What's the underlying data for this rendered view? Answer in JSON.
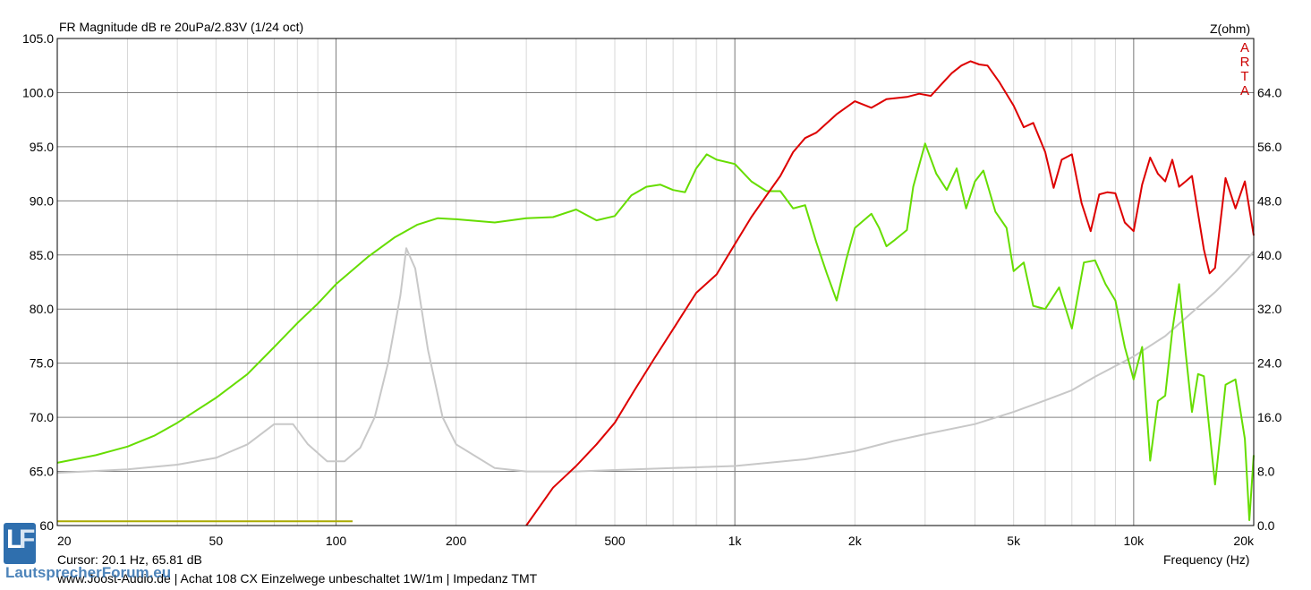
{
  "header": {
    "title": "FR Magnitude dB re 20uPa/2.83V (1/24 oct)",
    "right_axis_title": "Z(ohm)"
  },
  "watermark": {
    "letters": [
      "A",
      "R",
      "T",
      "A"
    ]
  },
  "footer": {
    "cursor": "Cursor: 20.1 Hz, 65.81 dB",
    "xlabel": "Frequency (Hz)",
    "caption": "www.Joost-Audio.de  |  Achat 108 CX  Einzelwege unbeschaltet 1W/1m  |  Impedanz TMT"
  },
  "logo": {
    "letters": "LF",
    "brand": "LautsprecherForum.eu"
  },
  "colors": {
    "background": "#ffffff",
    "grid_major": "#808080",
    "grid_minor": "#d8d8d8",
    "tweeter": "#dd0000",
    "woofer": "#66dd00",
    "impedance": "#c8c8c8",
    "marker": "#aaaa00",
    "arta": "#cc0000",
    "logo": "#2f6fae"
  },
  "chart_data": {
    "type": "line",
    "title": "FR Magnitude dB re 20uPa/2.83V (1/24 oct)",
    "xlabel": "Frequency (Hz)",
    "ylabel_right": "Z(ohm)",
    "x_scale": "log",
    "xlim": [
      20,
      20000
    ],
    "ylim": [
      60,
      105
    ],
    "ylim_right": [
      0,
      72
    ],
    "grid": true,
    "x_ticks": [
      20,
      50,
      100,
      200,
      500,
      1000,
      2000,
      5000,
      10000,
      20000
    ],
    "x_tick_labels": [
      "20",
      "50",
      "100",
      "200",
      "500",
      "1k",
      "2k",
      "5k",
      "10k",
      "20k"
    ],
    "y_ticks": [
      60,
      65,
      70,
      75,
      80,
      85,
      90,
      95,
      100,
      105
    ],
    "y_tick_labels": [
      "60",
      "65.0",
      "70.0",
      "75.0",
      "80.0",
      "85.0",
      "90.0",
      "95.0",
      "100.0",
      "105.0"
    ],
    "y_right_ticks": [
      0,
      8,
      16,
      24,
      32,
      40,
      48,
      56,
      64
    ],
    "y_right_tick_labels": [
      "0.0",
      "8.0",
      "16.0",
      "24.0",
      "32.0",
      "40.0",
      "48.0",
      "56.0",
      "64.0"
    ],
    "series": [
      {
        "color": "#dd0000",
        "axis": "left",
        "points": [
          [
            300,
            60
          ],
          [
            350,
            63.5
          ],
          [
            400,
            65.5
          ],
          [
            450,
            67.5
          ],
          [
            500,
            69.5
          ],
          [
            560,
            72.5
          ],
          [
            630,
            75.5
          ],
          [
            710,
            78.5
          ],
          [
            800,
            81.5
          ],
          [
            900,
            83.2
          ],
          [
            1000,
            86
          ],
          [
            1100,
            88.5
          ],
          [
            1200,
            90.5
          ],
          [
            1300,
            92.3
          ],
          [
            1400,
            94.5
          ],
          [
            1500,
            95.8
          ],
          [
            1600,
            96.3
          ],
          [
            1800,
            98
          ],
          [
            2000,
            99.2
          ],
          [
            2200,
            98.6
          ],
          [
            2400,
            99.4
          ],
          [
            2700,
            99.6
          ],
          [
            2900,
            99.9
          ],
          [
            3100,
            99.7
          ],
          [
            3300,
            100.8
          ],
          [
            3500,
            101.8
          ],
          [
            3700,
            102.5
          ],
          [
            3900,
            102.9
          ],
          [
            4100,
            102.6
          ],
          [
            4300,
            102.5
          ],
          [
            4600,
            101
          ],
          [
            5000,
            98.8
          ],
          [
            5300,
            96.8
          ],
          [
            5600,
            97.2
          ],
          [
            6000,
            94.5
          ],
          [
            6300,
            91.2
          ],
          [
            6600,
            93.8
          ],
          [
            7000,
            94.3
          ],
          [
            7400,
            89.8
          ],
          [
            7800,
            87.2
          ],
          [
            8200,
            90.6
          ],
          [
            8600,
            90.8
          ],
          [
            9000,
            90.7
          ],
          [
            9500,
            88
          ],
          [
            10000,
            87.2
          ],
          [
            10500,
            91.5
          ],
          [
            11000,
            94
          ],
          [
            11500,
            92.5
          ],
          [
            12000,
            91.8
          ],
          [
            12500,
            93.8
          ],
          [
            13000,
            91.3
          ],
          [
            13500,
            91.8
          ],
          [
            14000,
            92.3
          ],
          [
            15000,
            85.5
          ],
          [
            15500,
            83.3
          ],
          [
            16000,
            83.8
          ],
          [
            17000,
            92.1
          ],
          [
            18000,
            89.3
          ],
          [
            19000,
            91.8
          ],
          [
            20000,
            86.8
          ]
        ]
      },
      {
        "color": "#66dd00",
        "axis": "left",
        "points": [
          [
            20,
            65.8
          ],
          [
            25,
            66.5
          ],
          [
            30,
            67.3
          ],
          [
            35,
            68.3
          ],
          [
            40,
            69.5
          ],
          [
            50,
            71.8
          ],
          [
            60,
            74
          ],
          [
            70,
            76.5
          ],
          [
            80,
            78.7
          ],
          [
            90,
            80.5
          ],
          [
            100,
            82.3
          ],
          [
            120,
            84.8
          ],
          [
            140,
            86.6
          ],
          [
            160,
            87.8
          ],
          [
            180,
            88.4
          ],
          [
            200,
            88.3
          ],
          [
            250,
            88
          ],
          [
            300,
            88.4
          ],
          [
            350,
            88.5
          ],
          [
            400,
            89.2
          ],
          [
            450,
            88.2
          ],
          [
            500,
            88.6
          ],
          [
            550,
            90.5
          ],
          [
            600,
            91.3
          ],
          [
            650,
            91.5
          ],
          [
            700,
            91
          ],
          [
            750,
            90.8
          ],
          [
            800,
            93
          ],
          [
            850,
            94.3
          ],
          [
            900,
            93.8
          ],
          [
            1000,
            93.4
          ],
          [
            1100,
            91.8
          ],
          [
            1200,
            90.9
          ],
          [
            1300,
            90.9
          ],
          [
            1400,
            89.3
          ],
          [
            1500,
            89.6
          ],
          [
            1600,
            86.2
          ],
          [
            1700,
            83.3
          ],
          [
            1800,
            80.8
          ],
          [
            1900,
            84.5
          ],
          [
            2000,
            87.5
          ],
          [
            2200,
            88.8
          ],
          [
            2300,
            87.5
          ],
          [
            2400,
            85.8
          ],
          [
            2500,
            86.3
          ],
          [
            2700,
            87.3
          ],
          [
            2800,
            91.3
          ],
          [
            3000,
            95.3
          ],
          [
            3200,
            92.5
          ],
          [
            3400,
            91
          ],
          [
            3600,
            93
          ],
          [
            3800,
            89.3
          ],
          [
            4000,
            91.8
          ],
          [
            4200,
            92.8
          ],
          [
            4500,
            89
          ],
          [
            4800,
            87.5
          ],
          [
            5000,
            83.5
          ],
          [
            5300,
            84.3
          ],
          [
            5600,
            80.3
          ],
          [
            6000,
            80
          ],
          [
            6500,
            82
          ],
          [
            7000,
            78.2
          ],
          [
            7500,
            84.3
          ],
          [
            8000,
            84.5
          ],
          [
            8500,
            82.3
          ],
          [
            9000,
            80.8
          ],
          [
            9500,
            76.5
          ],
          [
            10000,
            73.5
          ],
          [
            10500,
            76.5
          ],
          [
            11000,
            66
          ],
          [
            11500,
            71.5
          ],
          [
            12000,
            72
          ],
          [
            12500,
            78
          ],
          [
            13000,
            82.3
          ],
          [
            13500,
            76
          ],
          [
            14000,
            70.5
          ],
          [
            14500,
            74
          ],
          [
            15000,
            73.8
          ],
          [
            16000,
            63.8
          ],
          [
            17000,
            73
          ],
          [
            18000,
            73.5
          ],
          [
            19000,
            68
          ],
          [
            19500,
            60.5
          ],
          [
            20000,
            66.5
          ]
        ]
      },
      {
        "color": "#c8c8c8",
        "axis": "right",
        "points": [
          [
            20,
            7.8
          ],
          [
            30,
            8.3
          ],
          [
            40,
            9
          ],
          [
            50,
            10
          ],
          [
            60,
            12
          ],
          [
            70,
            15
          ],
          [
            78,
            15
          ],
          [
            85,
            12
          ],
          [
            95,
            9.5
          ],
          [
            105,
            9.5
          ],
          [
            115,
            11.5
          ],
          [
            125,
            16
          ],
          [
            135,
            24
          ],
          [
            145,
            34
          ],
          [
            150,
            41
          ],
          [
            158,
            38
          ],
          [
            170,
            26
          ],
          [
            185,
            16
          ],
          [
            200,
            12
          ],
          [
            250,
            8.5
          ],
          [
            300,
            8
          ],
          [
            400,
            8
          ],
          [
            500,
            8.2
          ],
          [
            700,
            8.5
          ],
          [
            1000,
            8.8
          ],
          [
            1500,
            9.8
          ],
          [
            2000,
            11
          ],
          [
            2500,
            12.5
          ],
          [
            3000,
            13.5
          ],
          [
            4000,
            15
          ],
          [
            5000,
            16.8
          ],
          [
            6000,
            18.5
          ],
          [
            7000,
            20
          ],
          [
            8000,
            22
          ],
          [
            10000,
            25
          ],
          [
            12000,
            28
          ],
          [
            14000,
            31.5
          ],
          [
            16000,
            34.5
          ],
          [
            18000,
            37.5
          ],
          [
            20000,
            40.5
          ]
        ]
      },
      {
        "color": "#aaaa00",
        "axis": "left",
        "points": [
          [
            20,
            60.4
          ],
          [
            110,
            60.4
          ]
        ]
      }
    ]
  }
}
